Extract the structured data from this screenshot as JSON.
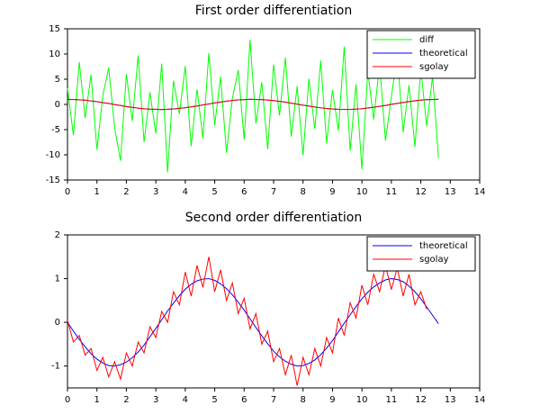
{
  "chart_data": [
    {
      "type": "line",
      "title": "First order differentiation",
      "x": [
        0,
        0.2,
        0.4,
        0.6,
        0.8,
        1.0,
        1.2,
        1.4,
        1.6,
        1.8,
        2.0,
        2.2,
        2.4,
        2.6,
        2.8,
        3.0,
        3.2,
        3.4,
        3.6,
        3.8,
        4.0,
        4.2,
        4.4,
        4.6,
        4.8,
        5.0,
        5.2,
        5.4,
        5.6,
        5.8,
        6.0,
        6.2,
        6.4,
        6.6,
        6.8,
        7.0,
        7.2,
        7.4,
        7.6,
        7.8,
        8.0,
        8.2,
        8.4,
        8.6,
        8.8,
        9.0,
        9.2,
        9.4,
        9.6,
        9.8,
        10.0,
        10.2,
        10.4,
        10.6,
        10.8,
        11.0,
        11.2,
        11.4,
        11.6,
        11.8,
        12.0,
        12.2,
        12.4,
        12.6
      ],
      "series": [
        {
          "name": "diff",
          "color": "#00ff00",
          "values": [
            3.2,
            -6.1,
            8.4,
            -2.7,
            5.9,
            -9.0,
            1.8,
            7.3,
            -4.6,
            -11.2,
            6.0,
            -3.3,
            9.7,
            -7.5,
            2.4,
            -5.8,
            8.1,
            -13.5,
            4.7,
            -1.9,
            7.6,
            -8.3,
            3.0,
            -6.7,
            10.2,
            -4.1,
            5.5,
            -9.6,
            1.2,
            6.8,
            -7.0,
            12.8,
            -3.8,
            4.4,
            -8.9,
            7.9,
            -2.2,
            9.3,
            -6.4,
            3.6,
            -10.1,
            5.1,
            -4.9,
            8.7,
            -7.7,
            2.9,
            -5.2,
            11.5,
            -9.2,
            4.0,
            -12.9,
            6.6,
            -3.0,
            8.0,
            -7.2,
            1.5,
            9.8,
            -5.5,
            3.8,
            -8.4,
            7.1,
            -4.3,
            5.6,
            -10.6
          ]
        },
        {
          "name": "theoretical",
          "color": "#0000ff",
          "values": [
            1,
            0.98,
            0.92,
            0.83,
            0.7,
            0.54,
            0.36,
            0.17,
            -0.03,
            -0.23,
            -0.42,
            -0.59,
            -0.74,
            -0.86,
            -0.94,
            -0.99,
            -1.0,
            -0.97,
            -0.9,
            -0.79,
            -0.65,
            -0.49,
            -0.31,
            -0.11,
            0.09,
            0.28,
            0.47,
            0.63,
            0.78,
            0.89,
            0.96,
            1.0,
            0.99,
            0.95,
            0.87,
            0.75,
            0.61,
            0.44,
            0.25,
            0.05,
            -0.15,
            -0.34,
            -0.52,
            -0.68,
            -0.81,
            -0.91,
            -0.97,
            -1.0,
            -0.98,
            -0.93,
            -0.84,
            -0.71,
            -0.56,
            -0.39,
            -0.2,
            0.0,
            0.2,
            0.38,
            0.56,
            0.71,
            0.84,
            0.93,
            0.98,
            1.0
          ]
        },
        {
          "name": "sgolay",
          "color": "#ff0000",
          "values": [
            0.97,
            0.99,
            0.9,
            0.85,
            0.68,
            0.56,
            0.34,
            0.19,
            -0.05,
            -0.21,
            -0.44,
            -0.57,
            -0.76,
            -0.84,
            -0.96,
            -0.97,
            -1.02,
            -0.95,
            -0.92,
            -0.77,
            -0.67,
            -0.47,
            -0.33,
            -0.09,
            0.07,
            0.3,
            0.45,
            0.65,
            0.76,
            0.91,
            0.94,
            1.02,
            0.97,
            0.97,
            0.85,
            0.77,
            0.59,
            0.46,
            0.23,
            0.07,
            -0.17,
            -0.32,
            -0.54,
            -0.66,
            -0.83,
            -0.89,
            -0.99,
            -0.98,
            -1.0,
            -0.91,
            -0.86,
            -0.69,
            -0.58,
            -0.37,
            -0.22,
            0.02,
            0.18,
            0.4,
            0.54,
            0.73,
            0.82,
            0.95,
            0.96,
            1.02
          ]
        }
      ],
      "xlim": [
        0,
        14
      ],
      "xticks": [
        0,
        1,
        2,
        3,
        4,
        5,
        6,
        7,
        8,
        9,
        10,
        11,
        12,
        13,
        14
      ],
      "ylim": [
        -15,
        15
      ],
      "yticks": [
        -15,
        -10,
        -5,
        0,
        5,
        10,
        15
      ],
      "legend": "upper right"
    },
    {
      "type": "line",
      "title": "Second order differentiation",
      "x": [
        0,
        0.2,
        0.4,
        0.6,
        0.8,
        1.0,
        1.2,
        1.4,
        1.6,
        1.8,
        2.0,
        2.2,
        2.4,
        2.6,
        2.8,
        3.0,
        3.2,
        3.4,
        3.6,
        3.8,
        4.0,
        4.2,
        4.4,
        4.6,
        4.8,
        5.0,
        5.2,
        5.4,
        5.6,
        5.8,
        6.0,
        6.2,
        6.4,
        6.6,
        6.8,
        7.0,
        7.2,
        7.4,
        7.6,
        7.8,
        8.0,
        8.2,
        8.4,
        8.6,
        8.8,
        9.0,
        9.2,
        9.4,
        9.6,
        9.8,
        10.0,
        10.2,
        10.4,
        10.6,
        10.8,
        11.0,
        11.2,
        11.4,
        11.6,
        11.8,
        12.0,
        12.2,
        12.4,
        12.6
      ],
      "series": [
        {
          "name": "theoretical",
          "color": "#0000ff",
          "values": [
            0,
            -0.2,
            -0.39,
            -0.56,
            -0.72,
            -0.84,
            -0.93,
            -0.99,
            -1.0,
            -0.97,
            -0.91,
            -0.81,
            -0.68,
            -0.52,
            -0.33,
            -0.14,
            0.06,
            0.26,
            0.44,
            0.61,
            0.76,
            0.87,
            0.95,
            0.99,
            1.0,
            0.96,
            0.88,
            0.77,
            0.63,
            0.46,
            0.28,
            0.08,
            -0.12,
            -0.31,
            -0.49,
            -0.66,
            -0.79,
            -0.89,
            -0.96,
            -1.0,
            -0.99,
            -0.94,
            -0.86,
            -0.74,
            -0.59,
            -0.42,
            -0.22,
            -0.02,
            0.17,
            0.36,
            0.54,
            0.69,
            0.81,
            0.9,
            0.97,
            1.0,
            0.98,
            0.93,
            0.83,
            0.7,
            0.54,
            0.35,
            0.16,
            -0.03
          ]
        },
        {
          "name": "sgolay",
          "color": "#ff0000",
          "values": [
            0.05,
            -0.45,
            -0.3,
            -0.75,
            -0.6,
            -1.1,
            -0.8,
            -1.25,
            -0.9,
            -1.3,
            -0.7,
            -1.0,
            -0.45,
            -0.7,
            -0.1,
            -0.35,
            0.25,
            0.0,
            0.7,
            0.4,
            1.15,
            0.6,
            1.3,
            0.8,
            1.5,
            0.7,
            1.2,
            0.5,
            0.9,
            0.2,
            0.55,
            -0.15,
            0.2,
            -0.5,
            -0.2,
            -0.9,
            -0.6,
            -1.2,
            -0.75,
            -1.45,
            -0.8,
            -1.2,
            -0.6,
            -1.0,
            -0.35,
            -0.7,
            0.1,
            -0.3,
            0.45,
            0.1,
            0.85,
            0.4,
            1.1,
            0.7,
            1.3,
            0.75,
            1.25,
            0.6,
            1.1,
            0.4,
            0.7,
            0.3,
            null,
            null
          ]
        }
      ],
      "xlim": [
        0,
        14
      ],
      "xticks": [
        0,
        1,
        2,
        3,
        4,
        5,
        6,
        7,
        8,
        9,
        10,
        11,
        12,
        13,
        14
      ],
      "ylim": [
        -1.5,
        2
      ],
      "yticks": [
        -1,
        0,
        1,
        2
      ],
      "legend": "upper right"
    }
  ]
}
